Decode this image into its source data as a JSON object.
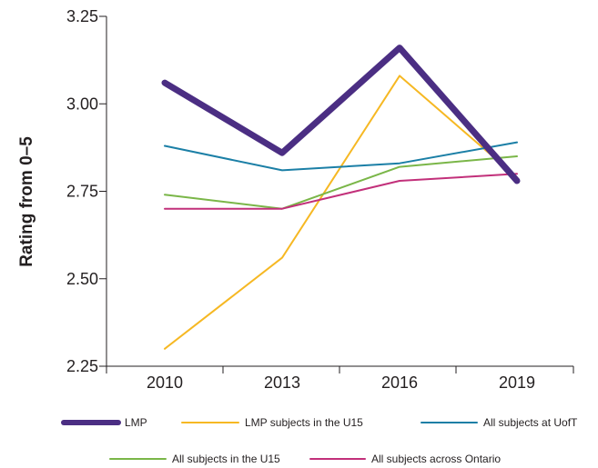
{
  "chart_data": {
    "type": "line",
    "title": "",
    "xlabel": "",
    "ylabel": "Rating from 0–5",
    "x": [
      "2010",
      "2013",
      "2016",
      "2019"
    ],
    "ylim": [
      2.25,
      3.25
    ],
    "yticks": [
      "2.25",
      "2.50",
      "2.75",
      "3.00",
      "3.25"
    ],
    "grid": false,
    "legend_position": "bottom",
    "series": [
      {
        "name": "LMP",
        "color": "#4b2e83",
        "values": [
          3.06,
          2.86,
          3.16,
          2.78
        ]
      },
      {
        "name": "LMP subjects in the U15",
        "color": "#f6b823",
        "values": [
          2.3,
          2.56,
          3.08,
          2.79
        ]
      },
      {
        "name": "All subjects at UofT",
        "color": "#1b7fa6",
        "values": [
          2.88,
          2.81,
          2.83,
          2.89
        ]
      },
      {
        "name": "All subjects in the U15",
        "color": "#7ab648",
        "values": [
          2.74,
          2.7,
          2.82,
          2.85
        ]
      },
      {
        "name": "All subjects across Ontario",
        "color": "#c2307a",
        "values": [
          2.7,
          2.7,
          2.78,
          2.8
        ]
      }
    ]
  }
}
